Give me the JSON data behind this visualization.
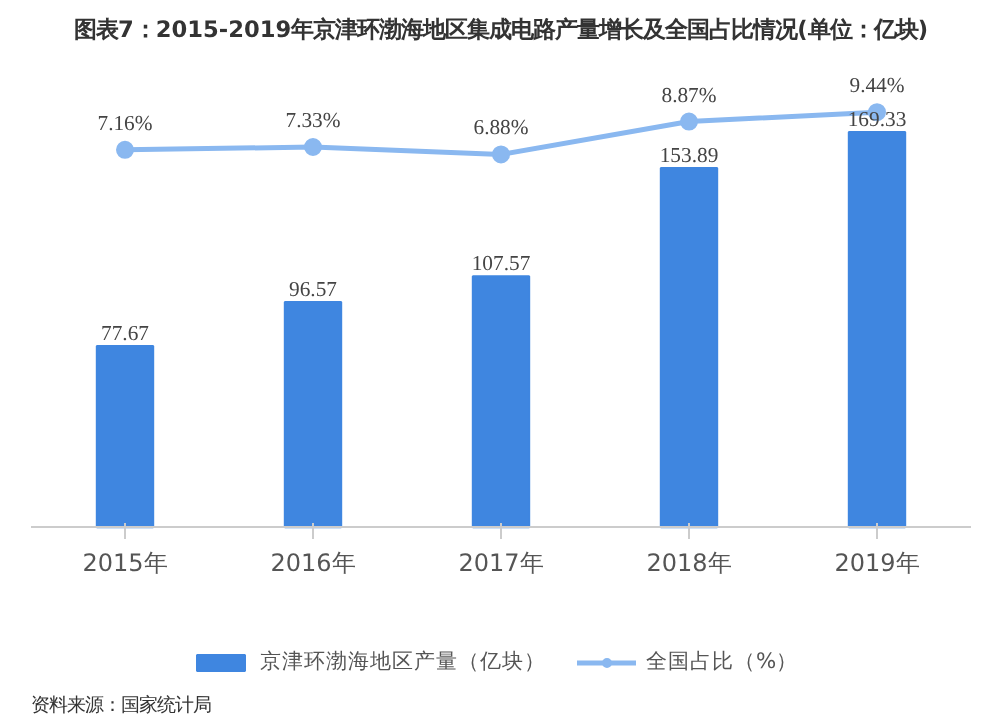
{
  "chart_data": {
    "type": "bar",
    "title": "图表7：2015-2019年京津环渤海地区集成电路产量增长及全国占比情况(单位：亿块)",
    "categories": [
      "2015年",
      "2016年",
      "2017年",
      "2018年",
      "2019年"
    ],
    "series": [
      {
        "name": "京津环渤海地区产量（亿块）",
        "type": "bar",
        "color": "#3f86e0",
        "values": [
          77.67,
          96.57,
          107.57,
          153.89,
          169.33
        ]
      },
      {
        "name": "全国占比（%）",
        "type": "line",
        "axis": "y2",
        "color": "#8ab8f0",
        "marker": "circle",
        "values": [
          7.16,
          7.33,
          6.88,
          8.87,
          9.44
        ],
        "value_labels": [
          "7.16%",
          "7.33%",
          "6.88%",
          "8.87%",
          "9.44%"
        ]
      }
    ],
    "data_labels": true,
    "grid": false,
    "legend": "bottom",
    "annotations": [
      "资料来源：国家统计局"
    ]
  }
}
